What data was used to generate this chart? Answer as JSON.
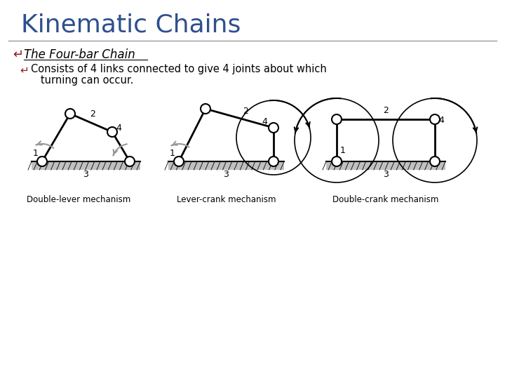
{
  "title": "Kinematic Chains",
  "title_color": "#2F4F8F",
  "title_fontsize": 26,
  "bg_color": "#FFFFFF",
  "border_color": "#999999",
  "bullet1": "The Four-bar Chain",
  "bullet2_line1": "Consists of 4 links connected to give 4 joints about which",
  "bullet2_line2": "   turning can occur.",
  "bullet_color": "#8B1A1A",
  "text_color": "#000000",
  "caption1": "Double-lever mechanism",
  "caption2": "Lever-crank mechanism",
  "caption3": "Double-crank mechanism",
  "ground_color": "#C0C0C0",
  "link_color": "#000000",
  "joint_color": "#FFFFFF",
  "joint_edge": "#000000",
  "arrow_color": "#888888"
}
